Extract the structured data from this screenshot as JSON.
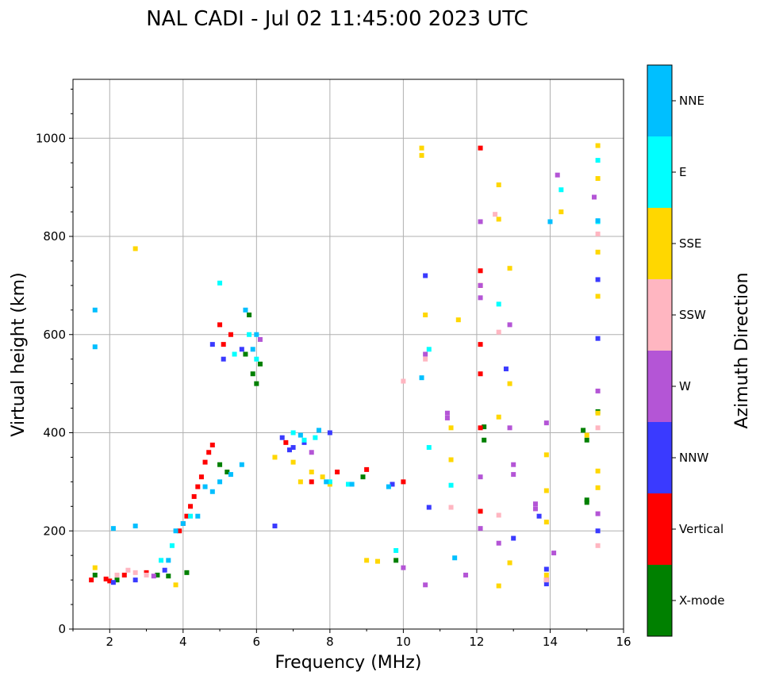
{
  "chart_data": {
    "type": "scatter",
    "title": "NAL CADI - Jul 02 11:45:00 2023 UTC",
    "xlabel": "Frequency (MHz)",
    "ylabel": "Virtual height (km)",
    "xlim": [
      1,
      16
    ],
    "ylim": [
      0,
      1120
    ],
    "xticks": [
      2,
      4,
      6,
      8,
      10,
      12,
      14,
      16
    ],
    "yticks": [
      0,
      200,
      400,
      600,
      800,
      1000
    ],
    "grid": true,
    "colorbar": {
      "label": "Azimuth Direction",
      "categories": [
        {
          "name": "X-mode",
          "color": "#008000"
        },
        {
          "name": "Vertical",
          "color": "#ff0000"
        },
        {
          "name": "NNW",
          "color": "#3a3aff"
        },
        {
          "name": "W",
          "color": "#b455d6"
        },
        {
          "name": "SSW",
          "color": "#ffb6c1"
        },
        {
          "name": "SSE",
          "color": "#ffd700"
        },
        {
          "name": "E",
          "color": "#00ffff"
        },
        {
          "name": "NNE",
          "color": "#00bfff"
        }
      ]
    },
    "series": [
      {
        "name": "X-mode",
        "points": [
          [
            1.6,
            110
          ],
          [
            2.2,
            100
          ],
          [
            3.3,
            110
          ],
          [
            3.6,
            108
          ],
          [
            4.1,
            115
          ],
          [
            5.0,
            335
          ],
          [
            5.2,
            320
          ],
          [
            5.7,
            560
          ],
          [
            5.8,
            640
          ],
          [
            5.9,
            520
          ],
          [
            6.0,
            500
          ],
          [
            6.1,
            540
          ],
          [
            8.9,
            310
          ],
          [
            9.8,
            140
          ],
          [
            14.9,
            405
          ],
          [
            15.0,
            385
          ],
          [
            15.0,
            258
          ],
          [
            15.0,
            263
          ],
          [
            15.3,
            443
          ],
          [
            12.2,
            385
          ],
          [
            12.2,
            412
          ]
        ]
      },
      {
        "name": "Vertical",
        "points": [
          [
            1.5,
            100
          ],
          [
            1.9,
            102
          ],
          [
            2.0,
            98
          ],
          [
            2.4,
            110
          ],
          [
            3.0,
            115
          ],
          [
            3.9,
            200
          ],
          [
            4.0,
            215
          ],
          [
            4.1,
            230
          ],
          [
            4.2,
            250
          ],
          [
            4.3,
            270
          ],
          [
            4.4,
            290
          ],
          [
            4.5,
            310
          ],
          [
            4.6,
            340
          ],
          [
            4.7,
            360
          ],
          [
            4.8,
            375
          ],
          [
            5.0,
            620
          ],
          [
            5.1,
            580
          ],
          [
            5.3,
            600
          ],
          [
            6.8,
            380
          ],
          [
            7.5,
            300
          ],
          [
            8.2,
            320
          ],
          [
            9.0,
            325
          ],
          [
            10.0,
            300
          ],
          [
            12.1,
            520
          ],
          [
            12.1,
            580
          ],
          [
            12.1,
            410
          ],
          [
            12.1,
            240
          ],
          [
            12.1,
            700
          ],
          [
            12.1,
            730
          ],
          [
            12.1,
            980
          ],
          [
            13.9,
            100
          ]
        ]
      },
      {
        "name": "NNW",
        "points": [
          [
            2.1,
            95
          ],
          [
            2.7,
            100
          ],
          [
            3.5,
            120
          ],
          [
            4.8,
            580
          ],
          [
            5.1,
            550
          ],
          [
            5.6,
            570
          ],
          [
            6.5,
            210
          ],
          [
            6.7,
            390
          ],
          [
            6.9,
            365
          ],
          [
            7.0,
            370
          ],
          [
            7.3,
            380
          ],
          [
            8.0,
            400
          ],
          [
            9.7,
            295
          ],
          [
            10.6,
            720
          ],
          [
            10.7,
            248
          ],
          [
            12.8,
            530
          ],
          [
            13.0,
            185
          ],
          [
            13.7,
            230
          ],
          [
            13.9,
            122
          ],
          [
            13.9,
            92
          ],
          [
            15.3,
            712
          ],
          [
            15.3,
            592
          ],
          [
            15.3,
            200
          ]
        ]
      },
      {
        "name": "W",
        "points": [
          [
            3.2,
            108
          ],
          [
            6.1,
            590
          ],
          [
            7.5,
            360
          ],
          [
            10.0,
            125
          ],
          [
            10.6,
            90
          ],
          [
            10.6,
            560
          ],
          [
            11.2,
            440
          ],
          [
            11.2,
            430
          ],
          [
            11.7,
            110
          ],
          [
            12.1,
            830
          ],
          [
            12.1,
            700
          ],
          [
            12.1,
            675
          ],
          [
            12.1,
            310
          ],
          [
            12.1,
            205
          ],
          [
            12.6,
            175
          ],
          [
            12.9,
            620
          ],
          [
            12.9,
            410
          ],
          [
            13.0,
            335
          ],
          [
            13.0,
            315
          ],
          [
            13.6,
            255
          ],
          [
            13.6,
            245
          ],
          [
            13.9,
            420
          ],
          [
            14.1,
            155
          ],
          [
            14.2,
            925
          ],
          [
            15.2,
            880
          ],
          [
            15.3,
            485
          ],
          [
            15.3,
            235
          ]
        ]
      },
      {
        "name": "SSW",
        "points": [
          [
            2.2,
            110
          ],
          [
            2.5,
            120
          ],
          [
            2.7,
            115
          ],
          [
            3.0,
            110
          ],
          [
            10.0,
            505
          ],
          [
            10.6,
            550
          ],
          [
            11.3,
            248
          ],
          [
            12.5,
            845
          ],
          [
            12.6,
            605
          ],
          [
            12.6,
            232
          ],
          [
            13.9,
            100
          ],
          [
            15.3,
            805
          ],
          [
            15.3,
            410
          ],
          [
            15.3,
            170
          ]
        ]
      },
      {
        "name": "SSE",
        "points": [
          [
            1.6,
            125
          ],
          [
            2.7,
            775
          ],
          [
            3.8,
            90
          ],
          [
            6.5,
            350
          ],
          [
            7.0,
            340
          ],
          [
            7.2,
            300
          ],
          [
            7.5,
            320
          ],
          [
            7.8,
            310
          ],
          [
            8.0,
            295
          ],
          [
            9.0,
            140
          ],
          [
            9.3,
            138
          ],
          [
            10.5,
            980
          ],
          [
            10.5,
            965
          ],
          [
            10.6,
            640
          ],
          [
            11.3,
            410
          ],
          [
            11.3,
            345
          ],
          [
            11.5,
            630
          ],
          [
            12.6,
            905
          ],
          [
            12.6,
            835
          ],
          [
            12.6,
            432
          ],
          [
            12.6,
            88
          ],
          [
            12.9,
            735
          ],
          [
            12.9,
            500
          ],
          [
            12.9,
            135
          ],
          [
            13.9,
            355
          ],
          [
            13.9,
            282
          ],
          [
            13.9,
            218
          ],
          [
            13.9,
            110
          ],
          [
            14.3,
            850
          ],
          [
            15.0,
            395
          ],
          [
            15.3,
            985
          ],
          [
            15.3,
            918
          ],
          [
            15.3,
            768
          ],
          [
            15.3,
            678
          ],
          [
            15.3,
            440
          ],
          [
            15.3,
            322
          ],
          [
            15.3,
            288
          ]
        ]
      },
      {
        "name": "E",
        "points": [
          [
            3.4,
            140
          ],
          [
            3.7,
            170
          ],
          [
            4.2,
            230
          ],
          [
            5.0,
            705
          ],
          [
            5.4,
            560
          ],
          [
            5.8,
            600
          ],
          [
            6.0,
            550
          ],
          [
            7.0,
            400
          ],
          [
            7.3,
            385
          ],
          [
            7.6,
            390
          ],
          [
            8.0,
            300
          ],
          [
            8.5,
            295
          ],
          [
            9.8,
            160
          ],
          [
            10.7,
            570
          ],
          [
            10.7,
            370
          ],
          [
            11.3,
            293
          ],
          [
            12.6,
            662
          ],
          [
            14.3,
            895
          ],
          [
            15.3,
            955
          ],
          [
            15.3,
            830
          ]
        ]
      },
      {
        "name": "NNE",
        "points": [
          [
            1.6,
            650
          ],
          [
            1.6,
            575
          ],
          [
            2.1,
            205
          ],
          [
            2.7,
            210
          ],
          [
            3.6,
            140
          ],
          [
            3.8,
            200
          ],
          [
            4.0,
            215
          ],
          [
            4.4,
            230
          ],
          [
            4.6,
            290
          ],
          [
            4.8,
            280
          ],
          [
            5.0,
            300
          ],
          [
            5.3,
            315
          ],
          [
            5.6,
            335
          ],
          [
            5.7,
            650
          ],
          [
            5.9,
            570
          ],
          [
            6.0,
            600
          ],
          [
            7.2,
            395
          ],
          [
            7.7,
            405
          ],
          [
            7.9,
            300
          ],
          [
            8.6,
            295
          ],
          [
            9.6,
            290
          ],
          [
            10.5,
            512
          ],
          [
            11.4,
            145
          ],
          [
            14.0,
            830
          ],
          [
            15.3,
            832
          ]
        ]
      }
    ]
  }
}
